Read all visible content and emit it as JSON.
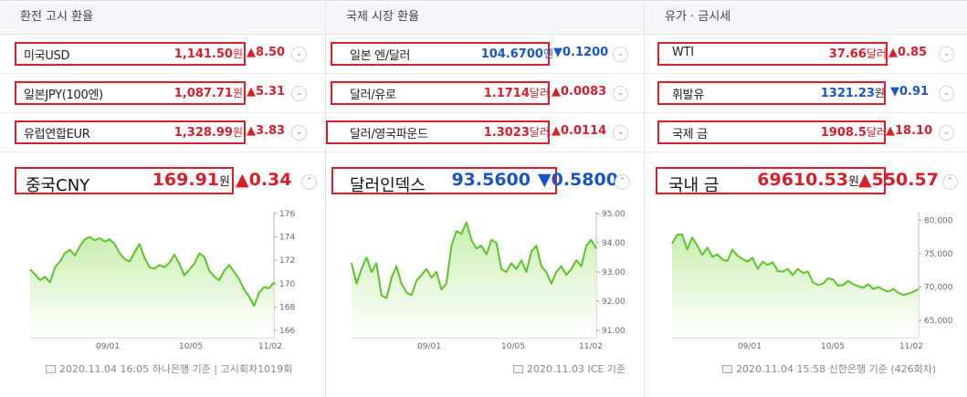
{
  "columns": [
    {
      "header": "환전 고시 환율",
      "rows": [
        {
          "name": "미국USD",
          "value": "1,141.50",
          "unit": "원",
          "change": "▲8.50",
          "color": "red"
        },
        {
          "name": "일본JPY(100엔)",
          "value": "1,087.71",
          "unit": "원",
          "change": "▲5.31",
          "color": "red"
        },
        {
          "name": "유럽연합EUR",
          "value": "1,328.99",
          "unit": "원",
          "change": "▲3.83",
          "color": "red"
        }
      ],
      "featured": {
        "name": "중국CNY",
        "value": "169.91",
        "unit": "원",
        "change": "▲0.34",
        "color": "red"
      },
      "footer": "2020.11.04 16:05 하나은행 기준 | 고시회차1019회"
    },
    {
      "header": "국제 시장 환율",
      "rows": [
        {
          "name": "일본 엔/달러",
          "value": "104.6700",
          "unit": "엔",
          "change": "▼0.1200",
          "color": "blue"
        },
        {
          "name": "달러/유로",
          "value": "1.1714",
          "unit": "달러",
          "change": "▲0.0083",
          "color": "red"
        },
        {
          "name": "달러/영국파운드",
          "value": "1.3023",
          "unit": "달러",
          "change": "▲0.0114",
          "color": "red"
        }
      ],
      "featured": {
        "name": "달러인덱스",
        "value": "93.5600",
        "unit": "",
        "change": "▼0.5800",
        "color": "blue"
      },
      "footer": "2020.11.03 ICE 기준"
    },
    {
      "header": "유가 · 금시세",
      "rows": [
        {
          "name": "WTI",
          "value": "37.66",
          "unit": "달러",
          "change": "▲0.85",
          "color": "red"
        },
        {
          "name": "휘발유",
          "value": "1321.23",
          "unit": "원",
          "change": "▼0.91",
          "color": "blue"
        },
        {
          "name": "국제 금",
          "value": "1908.5",
          "unit": "달러",
          "change": "▲18.10",
          "color": "red"
        }
      ],
      "featured": {
        "name": "국내 금",
        "value": "69610.53",
        "unit": "원",
        "change": "▲550.57",
        "color": "red"
      },
      "footer": "2020.11.04 15:58 신한은행 기준 (426회차)"
    }
  ],
  "icons": {
    "dropdown": "chevron-down-icon",
    "collapse": "chevron-up-icon",
    "footer": "calendar-icon"
  },
  "colors": {
    "up": "#d81e28",
    "down": "#1a55c8",
    "line": "#5cc428",
    "fill_top": "#c8eeae",
    "fill_bottom": "#ffffff"
  },
  "chart_data": [
    {
      "type": "area",
      "x_ticks": [
        "09/01",
        "10/05",
        "11/02"
      ],
      "y_ticks": [
        "176",
        "174",
        "172",
        "170",
        "168",
        "166"
      ],
      "ylim": [
        166,
        176
      ],
      "values": [
        171.2,
        170.8,
        170.3,
        170.6,
        170.1,
        171.4,
        171.9,
        172.6,
        172.9,
        172.4,
        173.2,
        173.8,
        174.0,
        173.7,
        173.9,
        173.6,
        173.8,
        173.4,
        172.6,
        172.1,
        171.9,
        172.7,
        173.4,
        172.2,
        171.4,
        171.3,
        171.6,
        171.4,
        171.8,
        172.5,
        171.7,
        170.7,
        171.2,
        171.7,
        172.6,
        172.3,
        171.1,
        170.6,
        170.3,
        171.1,
        171.6,
        171.0,
        170.4,
        169.5,
        168.9,
        168.1,
        169.2,
        169.7,
        169.6,
        170.1
      ]
    },
    {
      "type": "area",
      "x_ticks": [
        "09/01",
        "10/05",
        "11/02"
      ],
      "y_ticks": [
        "95.00",
        "94.00",
        "93.00",
        "92.00",
        "91.00"
      ],
      "ylim": [
        91,
        95
      ],
      "values": [
        93.3,
        92.6,
        93.1,
        93.5,
        93.0,
        93.3,
        92.2,
        92.1,
        92.8,
        93.2,
        92.6,
        92.3,
        92.2,
        92.7,
        92.9,
        93.1,
        92.8,
        93.0,
        92.4,
        92.6,
        93.9,
        94.4,
        94.3,
        94.7,
        94.1,
        93.8,
        93.9,
        93.6,
        94.1,
        94.0,
        93.1,
        93.0,
        93.3,
        93.1,
        93.4,
        93.0,
        93.7,
        93.9,
        93.2,
        93.0,
        92.6,
        93.0,
        93.2,
        92.9,
        93.1,
        93.4,
        93.2,
        93.9,
        94.1,
        93.8
      ]
    },
    {
      "type": "area",
      "x_ticks": [
        "09/01",
        "10/05",
        "11/02"
      ],
      "y_ticks": [
        "80,000",
        "75,000",
        "70,000",
        "65,000"
      ],
      "ylim": [
        63500,
        81000
      ],
      "values": [
        76500,
        77800,
        77900,
        75600,
        77400,
        76200,
        74800,
        75900,
        74500,
        74900,
        74100,
        73900,
        75600,
        74700,
        74200,
        73800,
        74400,
        72700,
        73800,
        73300,
        73700,
        72400,
        72300,
        72700,
        71800,
        72700,
        72100,
        72300,
        70700,
        70300,
        70500,
        71300,
        71100,
        70200,
        70300,
        70900,
        70400,
        70100,
        69900,
        70400,
        69700,
        70000,
        69600,
        69300,
        69700,
        69100,
        68800,
        69000,
        69300,
        69700
      ]
    }
  ]
}
